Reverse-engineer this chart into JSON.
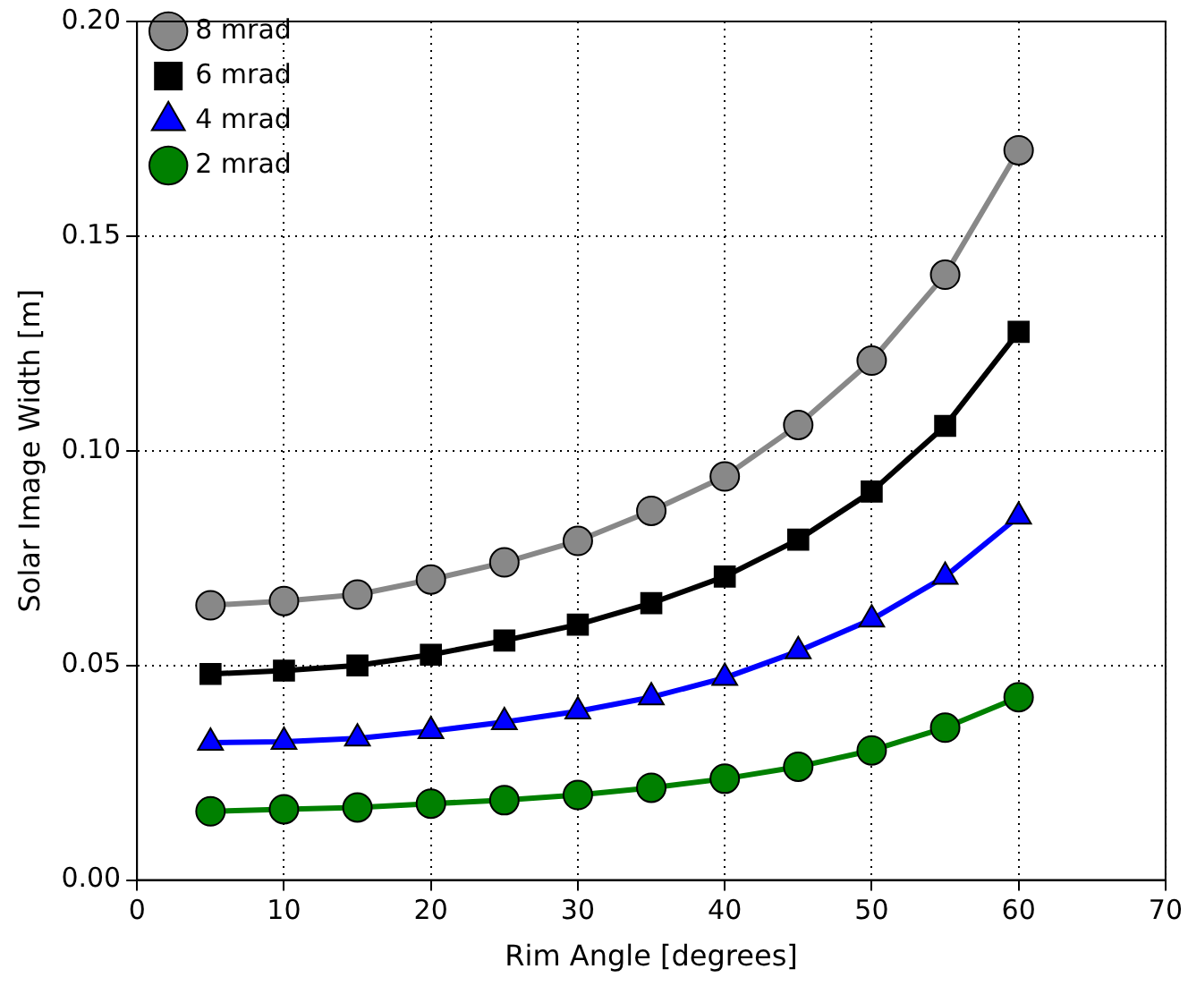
{
  "chart_data": {
    "type": "line",
    "xlabel": "Rim Angle [degrees]",
    "ylabel": "Solar Image Width [m]",
    "x": [
      5,
      10,
      15,
      20,
      25,
      30,
      35,
      40,
      45,
      50,
      55,
      60
    ],
    "series": [
      {
        "name": "8 mrad",
        "color": "#888888",
        "marker": "circle",
        "values": [
          0.064,
          0.065,
          0.0665,
          0.07,
          0.074,
          0.079,
          0.086,
          0.094,
          0.106,
          0.121,
          0.141,
          0.17
        ]
      },
      {
        "name": "6 mrad",
        "color": "#000000",
        "marker": "square",
        "values": [
          0.048,
          0.0488,
          0.05,
          0.0525,
          0.0558,
          0.0595,
          0.0645,
          0.0707,
          0.0793,
          0.0905,
          0.1058,
          0.1277
        ]
      },
      {
        "name": "4 mrad",
        "color": "#0000ff",
        "marker": "triangle",
        "values": [
          0.032,
          0.0322,
          0.033,
          0.0347,
          0.0368,
          0.0393,
          0.0426,
          0.0471,
          0.0533,
          0.0607,
          0.0707,
          0.0847
        ]
      },
      {
        "name": "2 mrad",
        "color": "#008000",
        "marker": "circle",
        "values": [
          0.016,
          0.0165,
          0.0169,
          0.0178,
          0.0186,
          0.0198,
          0.0215,
          0.0236,
          0.0264,
          0.0302,
          0.0355,
          0.0426
        ]
      }
    ],
    "xlim": [
      0,
      70
    ],
    "xticks": [
      0,
      10,
      20,
      30,
      40,
      50,
      60,
      70
    ],
    "ylim": [
      0,
      0.2
    ],
    "yticks": [
      {
        "value": 0,
        "label": "0.00"
      },
      {
        "value": 0.05,
        "label": "0.05"
      },
      {
        "value": 0.1,
        "label": "0.10"
      },
      {
        "value": 0.15,
        "label": "0.15"
      },
      {
        "value": 0.2,
        "label": "0.20"
      }
    ],
    "grid": true,
    "line_style": "solid",
    "legend": "top left"
  }
}
